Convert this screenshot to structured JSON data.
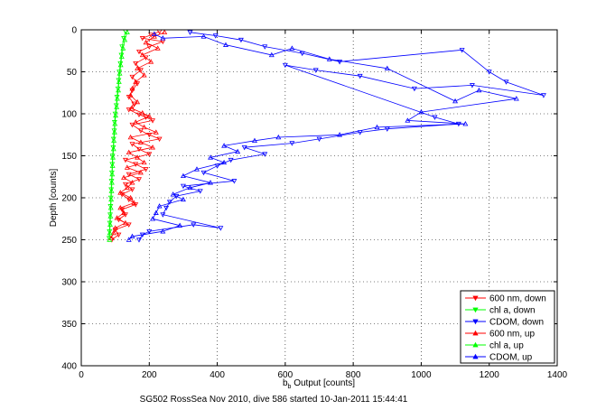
{
  "figure": {
    "caption": "SG502 RossSea Nov 2010, dive 586 started 10-Jan-2011 15:44:41"
  },
  "chart_data": {
    "type": "scatter",
    "xlabel_main": "b",
    "xlabel_sub": "b",
    "xlabel_rest": " Output [counts]",
    "ylabel": "Depth [counts]",
    "xlim": [
      0,
      1400
    ],
    "ylim": [
      0,
      400
    ],
    "y_reversed": true,
    "grid": true,
    "x_ticks": [
      0,
      200,
      400,
      600,
      800,
      1000,
      1200,
      1400
    ],
    "y_ticks": [
      0,
      50,
      100,
      150,
      200,
      250,
      300,
      350,
      400
    ],
    "legend_position": "bottom-right",
    "series": [
      {
        "name": "600 nm, down",
        "color": "#ff0000",
        "marker": "triangle-down",
        "points": [
          [
            230,
            2
          ],
          [
            205,
            6
          ],
          [
            180,
            10
          ],
          [
            240,
            14
          ],
          [
            200,
            20
          ],
          [
            170,
            26
          ],
          [
            190,
            33
          ],
          [
            160,
            40
          ],
          [
            175,
            48
          ],
          [
            150,
            56
          ],
          [
            165,
            64
          ],
          [
            150,
            72
          ],
          [
            140,
            80
          ],
          [
            155,
            88
          ],
          [
            140,
            95
          ],
          [
            170,
            101
          ],
          [
            190,
            104
          ],
          [
            210,
            108
          ],
          [
            150,
            113
          ],
          [
            175,
            120
          ],
          [
            200,
            125
          ],
          [
            230,
            130
          ],
          [
            150,
            136
          ],
          [
            170,
            142
          ],
          [
            200,
            148
          ],
          [
            130,
            155
          ],
          [
            160,
            160
          ],
          [
            190,
            166
          ],
          [
            140,
            172
          ],
          [
            170,
            178
          ],
          [
            130,
            184
          ],
          [
            150,
            190
          ],
          [
            120,
            196
          ],
          [
            140,
            202
          ],
          [
            160,
            208
          ],
          [
            120,
            214
          ],
          [
            130,
            220
          ],
          [
            110,
            226
          ],
          [
            140,
            232
          ],
          [
            100,
            238
          ],
          [
            110,
            244
          ],
          [
            90,
            250
          ]
        ]
      },
      {
        "name": "chl a, down",
        "color": "#00ff00",
        "marker": "triangle-down",
        "points": [
          [
            130,
            2
          ],
          [
            125,
            10
          ],
          [
            120,
            20
          ],
          [
            118,
            30
          ],
          [
            115,
            40
          ],
          [
            112,
            50
          ],
          [
            110,
            60
          ],
          [
            108,
            70
          ],
          [
            105,
            80
          ],
          [
            103,
            90
          ],
          [
            100,
            100
          ],
          [
            98,
            110
          ],
          [
            97,
            120
          ],
          [
            95,
            130
          ],
          [
            94,
            140
          ],
          [
            92,
            150
          ],
          [
            91,
            160
          ],
          [
            90,
            170
          ],
          [
            89,
            180
          ],
          [
            88,
            190
          ],
          [
            87,
            200
          ],
          [
            86,
            210
          ],
          [
            85,
            220
          ],
          [
            84,
            230
          ],
          [
            83,
            240
          ],
          [
            82,
            248
          ]
        ]
      },
      {
        "name": "CDOM, down",
        "color": "#0000ff",
        "marker": "triangle-down",
        "points": [
          [
            320,
            3
          ],
          [
            395,
            7
          ],
          [
            470,
            12
          ],
          [
            540,
            20
          ],
          [
            650,
            28
          ],
          [
            760,
            38
          ],
          [
            1120,
            24
          ],
          [
            1200,
            50
          ],
          [
            1250,
            62
          ],
          [
            1360,
            78
          ],
          [
            1150,
            66
          ],
          [
            980,
            70
          ],
          [
            820,
            55
          ],
          [
            690,
            48
          ],
          [
            600,
            42
          ],
          [
            1040,
            104
          ],
          [
            1110,
            112
          ],
          [
            900,
            118
          ],
          [
            820,
            122
          ],
          [
            700,
            130
          ],
          [
            620,
            135
          ],
          [
            480,
            140
          ],
          [
            540,
            148
          ],
          [
            440,
            155
          ],
          [
            400,
            162
          ],
          [
            360,
            170
          ],
          [
            450,
            180
          ],
          [
            300,
            186
          ],
          [
            350,
            192
          ],
          [
            280,
            198
          ],
          [
            260,
            205
          ],
          [
            250,
            212
          ],
          [
            240,
            220
          ],
          [
            410,
            236
          ],
          [
            330,
            232
          ],
          [
            200,
            240
          ],
          [
            180,
            244
          ],
          [
            170,
            250
          ]
        ]
      },
      {
        "name": "600 nm, up",
        "color": "#ff0000",
        "marker": "triangle-up",
        "points": [
          [
            245,
            3
          ],
          [
            215,
            8
          ],
          [
            190,
            15
          ],
          [
            225,
            22
          ],
          [
            180,
            30
          ],
          [
            205,
            38
          ],
          [
            165,
            46
          ],
          [
            185,
            54
          ],
          [
            160,
            62
          ],
          [
            150,
            70
          ],
          [
            145,
            78
          ],
          [
            165,
            86
          ],
          [
            150,
            94
          ],
          [
            180,
            99
          ],
          [
            200,
            103
          ],
          [
            160,
            110
          ],
          [
            185,
            116
          ],
          [
            220,
            122
          ],
          [
            145,
            128
          ],
          [
            175,
            134
          ],
          [
            210,
            140
          ],
          [
            140,
            146
          ],
          [
            165,
            152
          ],
          [
            185,
            158
          ],
          [
            135,
            164
          ],
          [
            175,
            170
          ],
          [
            125,
            176
          ],
          [
            150,
            182
          ],
          [
            135,
            188
          ],
          [
            115,
            194
          ],
          [
            145,
            200
          ],
          [
            155,
            206
          ],
          [
            115,
            212
          ],
          [
            125,
            218
          ],
          [
            105,
            224
          ],
          [
            130,
            230
          ],
          [
            100,
            236
          ],
          [
            95,
            242
          ],
          [
            88,
            248
          ]
        ]
      },
      {
        "name": "chl a, up",
        "color": "#00ff00",
        "marker": "triangle-up",
        "points": [
          [
            135,
            3
          ],
          [
            128,
            12
          ],
          [
            123,
            22
          ],
          [
            119,
            32
          ],
          [
            116,
            42
          ],
          [
            113,
            52
          ],
          [
            111,
            62
          ],
          [
            109,
            72
          ],
          [
            106,
            82
          ],
          [
            104,
            92
          ],
          [
            101,
            102
          ],
          [
            99,
            112
          ],
          [
            98,
            122
          ],
          [
            96,
            132
          ],
          [
            95,
            142
          ],
          [
            93,
            152
          ],
          [
            92,
            162
          ],
          [
            91,
            172
          ],
          [
            90,
            182
          ],
          [
            89,
            192
          ],
          [
            88,
            202
          ],
          [
            87,
            212
          ],
          [
            86,
            222
          ],
          [
            85,
            232
          ],
          [
            84,
            242
          ],
          [
            83,
            250
          ]
        ]
      },
      {
        "name": "CDOM, up",
        "color": "#0000ff",
        "marker": "triangle-up",
        "points": [
          [
            215,
            5
          ],
          [
            240,
            10
          ],
          [
            360,
            8
          ],
          [
            425,
            18
          ],
          [
            560,
            30
          ],
          [
            620,
            22
          ],
          [
            730,
            35
          ],
          [
            900,
            46
          ],
          [
            1100,
            85
          ],
          [
            1170,
            72
          ],
          [
            1280,
            82
          ],
          [
            1000,
            98
          ],
          [
            960,
            108
          ],
          [
            1130,
            112
          ],
          [
            870,
            116
          ],
          [
            760,
            125
          ],
          [
            580,
            128
          ],
          [
            510,
            132
          ],
          [
            420,
            138
          ],
          [
            460,
            145
          ],
          [
            380,
            152
          ],
          [
            420,
            158
          ],
          [
            340,
            166
          ],
          [
            300,
            174
          ],
          [
            380,
            182
          ],
          [
            320,
            188
          ],
          [
            270,
            196
          ],
          [
            300,
            202
          ],
          [
            230,
            210
          ],
          [
            220,
            218
          ],
          [
            210,
            225
          ],
          [
            290,
            233
          ],
          [
            240,
            240
          ],
          [
            150,
            246
          ],
          [
            140,
            250
          ]
        ]
      }
    ]
  }
}
